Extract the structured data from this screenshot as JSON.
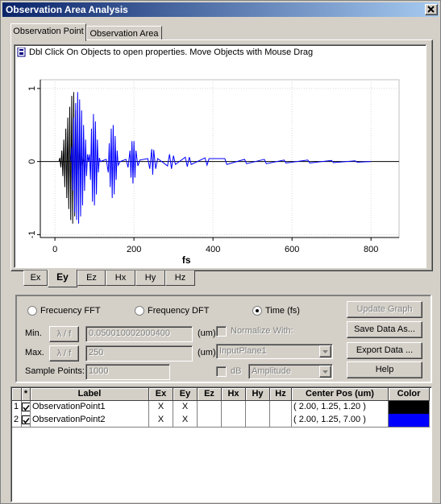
{
  "window": {
    "title": "Observation Area Analysis"
  },
  "tabs": [
    "Observation Point",
    "Observation Area"
  ],
  "hint": "Dbl Click On Objects to open properties.  Move Objects with Mouse Drag",
  "chart_data": {
    "type": "line",
    "xlabel": "fs",
    "xlim": [
      -37,
      871
    ],
    "ylim": [
      -1.04,
      1.12
    ],
    "xticks": [
      0,
      200,
      400,
      600,
      800
    ],
    "yticks": [
      -1,
      0,
      1
    ],
    "grid": true,
    "series": [
      {
        "color": "#000000",
        "x": [
          10,
          12.5,
          15,
          17.5,
          20,
          22.5,
          25,
          27.5,
          30,
          32.5,
          35,
          37.5,
          40,
          42.5,
          45,
          47.5,
          50,
          52.5,
          55,
          57.5,
          60,
          62.5,
          65,
          67.5,
          70,
          72.5,
          75
        ],
        "values": [
          0,
          0.05,
          -0.08,
          0.15,
          -0.2,
          0.3,
          -0.35,
          0.45,
          -0.5,
          0.6,
          -0.65,
          0.75,
          -0.8,
          0.9,
          -0.85,
          0.95,
          -0.75,
          0.7,
          -0.6,
          0.5,
          -0.4,
          0.3,
          -0.2,
          0.12,
          -0.06,
          0.03,
          0
        ]
      },
      {
        "color": "#0000ff",
        "x": [
          40,
          42.5,
          45,
          47.5,
          50,
          52.5,
          55,
          57.5,
          60,
          62.5,
          65,
          67.5,
          70,
          72.5,
          75,
          77.5,
          80,
          82.5,
          85,
          87.5,
          90,
          92.5,
          95,
          97.5,
          100,
          102.5,
          105,
          107.5,
          110,
          112.5,
          115,
          130,
          135,
          137.5,
          140,
          142.5,
          145,
          147.5,
          150,
          152.5,
          155,
          157.5,
          160,
          165,
          180,
          185,
          190,
          192.5,
          195,
          197.5,
          200,
          202.5,
          205,
          210,
          215,
          235,
          240,
          245,
          247.5,
          250,
          255,
          260,
          285,
          290,
          295,
          300,
          305,
          330,
          335,
          340,
          345,
          380,
          385,
          390,
          430,
          435,
          480,
          485,
          530,
          535,
          580,
          585,
          640,
          645,
          700,
          705,
          760,
          765,
          800
        ],
        "values": [
          0,
          0.2,
          -0.4,
          0.6,
          -0.7,
          0.8,
          -0.8,
          0.95,
          -0.85,
          0.85,
          -0.75,
          0.7,
          -0.6,
          0.5,
          -0.4,
          0.3,
          -0.2,
          0.1,
          0,
          0.1,
          -0.25,
          0.45,
          -0.55,
          0.65,
          -0.6,
          0.55,
          -0.45,
          0.3,
          -0.15,
          0.05,
          0,
          0.03,
          -0.15,
          0.25,
          -0.35,
          0.45,
          -0.5,
          0.5,
          -0.45,
          0.35,
          -0.25,
          0.15,
          -0.05,
          0,
          0.03,
          -0.08,
          0.15,
          -0.22,
          0.28,
          -0.3,
          0.28,
          -0.22,
          0.15,
          -0.06,
          0.02,
          0.04,
          -0.1,
          0.17,
          -0.18,
          0.16,
          -0.1,
          0.04,
          -0.06,
          0.1,
          -0.1,
          0.08,
          -0.04,
          0.06,
          -0.07,
          0.06,
          -0.04,
          0.05,
          -0.05,
          0.04,
          0.04,
          -0.04,
          0.03,
          -0.03,
          0.03,
          -0.03,
          0.02,
          -0.02,
          0.02,
          -0.02,
          0.015,
          -0.015,
          0.01,
          -0.01,
          0
        ]
      }
    ]
  },
  "field_tabs": [
    "Ex",
    "Ey",
    "Ez",
    "Hx",
    "Hy",
    "Hz"
  ],
  "options": {
    "radios": [
      "Frecuency FFT",
      "Frequency DFT",
      "Time (fs)"
    ],
    "min_label": "Min.",
    "max_label": "Max.",
    "lambda_button": "λ / f",
    "min_value": "0.050010002000400",
    "max_value": "250",
    "unit": "(um)",
    "sample_label": "Sample Points:",
    "sample_value": "1000",
    "normalize": "Normalize With:",
    "plane": "InputPlane1",
    "db": "dB",
    "amplitude": "Amplitude"
  },
  "buttons": [
    "Update Graph",
    "Save Data As...",
    "Export Data ...",
    "Help"
  ],
  "table": {
    "columns": [
      "*",
      "Label",
      "Ex",
      "Ey",
      "Ez",
      "Hx",
      "Hy",
      "Hz",
      "Center Pos (um)",
      "Color"
    ],
    "rows": [
      {
        "index": 1,
        "label": "ObservationPoint1",
        "ex": "X",
        "ey": "X",
        "center": "( 2.00, 1.25, 1.20 )",
        "color": "#000000"
      },
      {
        "index": 2,
        "label": "ObservationPoint2",
        "ex": "X",
        "ey": "X",
        "center": "( 2.00, 1.25, 7.00 )",
        "color": "#0000ff"
      }
    ]
  }
}
